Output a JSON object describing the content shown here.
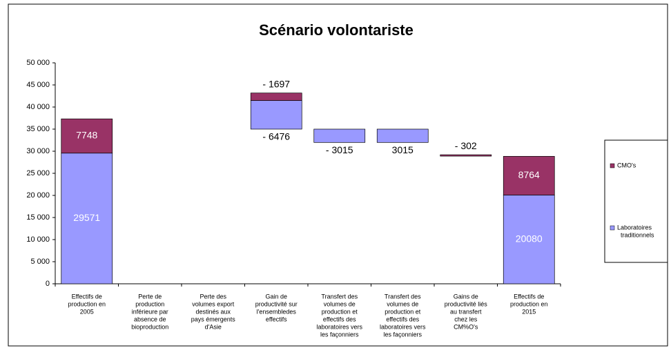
{
  "chart_data": {
    "type": "waterfall",
    "title": "Scénario volontariste",
    "categories": [
      [
        "Effectifs de",
        "production en",
        "2005"
      ],
      [
        "Perte de",
        "production",
        "inférieure par",
        "absence de",
        "bioproduction"
      ],
      [
        "Perte des",
        "volumes export",
        "destinés aux",
        "pays émergents",
        "d'Asie"
      ],
      [
        "Gain de",
        "productivité sur",
        "l'ensembledes",
        "effectifs"
      ],
      [
        "Transfert des",
        "volumes de",
        "production et",
        "effectifs des",
        "laboratoires vers",
        "les façonniers"
      ],
      [
        "Transfert des",
        "volumes de",
        "production et",
        "effectifs des",
        "laboratoires vers",
        "les façonniers"
      ],
      [
        "Gains de",
        "productivité liés",
        "au transfert",
        "chez les",
        "CM%O's"
      ],
      [
        "Effectifs de",
        "production en",
        "2015"
      ]
    ],
    "series": [
      {
        "name": [
          "Laboratoires",
          "traditionnels"
        ],
        "color": "#9999ff",
        "values": [
          29571,
          null,
          null,
          -6476,
          -3015,
          3015,
          null,
          20080
        ],
        "value_labels": [
          "29571",
          null,
          null,
          "- 6476",
          "- 3015",
          "3015",
          null,
          "20080"
        ],
        "starts": [
          0,
          null,
          null,
          41476,
          35000,
          31985,
          null,
          0
        ]
      },
      {
        "name": [
          "CMO's"
        ],
        "color": "#993366",
        "values": [
          7748,
          null,
          null,
          -1697,
          null,
          null,
          -302,
          8764
        ],
        "value_labels": [
          "7748",
          null,
          null,
          "- 1697",
          null,
          null,
          "- 302",
          "8764"
        ],
        "starts": [
          29571,
          null,
          null,
          43173,
          null,
          null,
          29200,
          20080
        ]
      }
    ],
    "ylim": [
      0,
      50000
    ],
    "yticks": [
      0,
      {
        "value": 5000,
        "label": "5 000"
      },
      {
        "value": 10000,
        "label": "10 000"
      },
      {
        "value": 15000,
        "label": "15 000"
      },
      {
        "value": 20000,
        "label": "20 000"
      },
      {
        "value": 25000,
        "label": "25 000"
      },
      {
        "value": 30000,
        "label": "30 000"
      },
      {
        "value": 35000,
        "label": "35 000"
      },
      {
        "value": 40000,
        "label": "40 000"
      },
      {
        "value": 45000,
        "label": "45 000"
      },
      {
        "value": 50000,
        "label": "50 000"
      }
    ],
    "legend": "right"
  }
}
